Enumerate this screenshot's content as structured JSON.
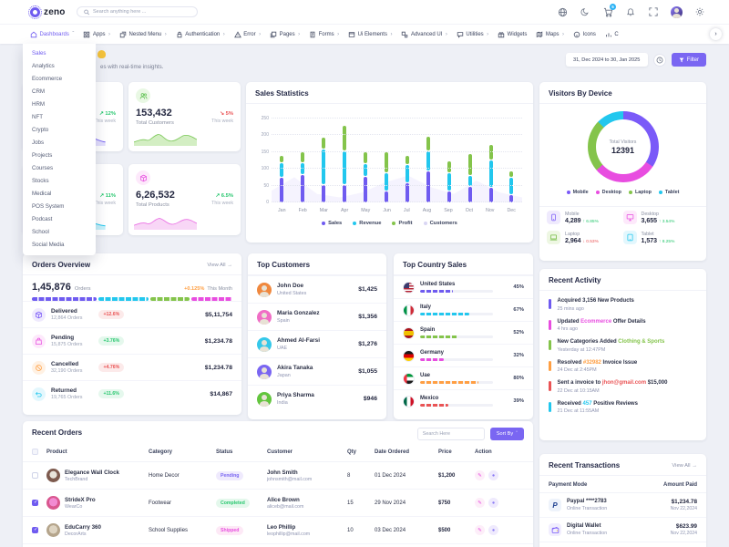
{
  "brand": {
    "name": "zeno"
  },
  "topbar": {
    "search_placeholder": "Search anything here ...",
    "cart_badge": "5"
  },
  "nav": {
    "items": [
      {
        "label": "Dashboards"
      },
      {
        "label": "Apps"
      },
      {
        "label": "Nested Menu"
      },
      {
        "label": "Authentication"
      },
      {
        "label": "Error"
      },
      {
        "label": "Pages"
      },
      {
        "label": "Forms"
      },
      {
        "label": "Ui Elements"
      },
      {
        "label": "Advanced UI"
      },
      {
        "label": "Utilities"
      },
      {
        "label": "Widgets"
      },
      {
        "label": "Maps"
      },
      {
        "label": "Icons"
      },
      {
        "label": "C"
      }
    ]
  },
  "dropdown": {
    "items": [
      "Sales",
      "Analytics",
      "Ecommerce",
      "CRM",
      "HRM",
      "NFT",
      "Crypto",
      "Jobs",
      "Projects",
      "Courses",
      "Stocks",
      "Medical",
      "POS System",
      "Podcast",
      "School",
      "Social Media"
    ]
  },
  "page_header": {
    "subtitle_fragment": "es with real-time insights.",
    "date_range": "31, Dec 2024 to 30, Jan 2025",
    "filter_label": "Filter"
  },
  "stat_cards": {
    "card1": {
      "trend": "↗ 12%",
      "period": "This week"
    },
    "customers": {
      "value": "153,432",
      "label": "Total Customers",
      "trend": "↘ 5%",
      "period": "This week"
    },
    "card3": {
      "trend": "↗ 11%",
      "period": "This week"
    },
    "products": {
      "value": "6,26,532",
      "label": "Total Products",
      "trend": "↗ 6.5%",
      "period": "This week"
    }
  },
  "chart_data": [
    {
      "type": "bar",
      "title": "Sales Statistics",
      "stacked": true,
      "categories": [
        "Jan",
        "Feb",
        "Mar",
        "Apr",
        "May",
        "Jun",
        "Jul",
        "Aug",
        "Sep",
        "Oct",
        "Nov",
        "Dec"
      ],
      "series": [
        {
          "name": "Sales",
          "color": "#6f5bf0",
          "values": [
            75,
            85,
            55,
            55,
            78,
            35,
            60,
            95,
            35,
            48,
            46,
            25
          ]
        },
        {
          "name": "Revenue",
          "color": "#22c7ee",
          "values": [
            45,
            35,
            105,
            100,
            40,
            55,
            55,
            60,
            55,
            34,
            82,
            50
          ]
        },
        {
          "name": "Profit",
          "color": "#84c44b",
          "values": [
            22,
            33,
            37,
            75,
            33,
            62,
            26,
            43,
            36,
            64,
            46,
            20
          ]
        }
      ],
      "area_series": {
        "name": "Customers",
        "color": "#6f5bf0",
        "values": [
          35,
          75,
          25,
          15,
          30,
          60,
          80,
          45,
          25,
          65,
          30,
          15
        ]
      },
      "ylim": [
        0,
        250
      ],
      "yticks": [
        0,
        50,
        100,
        150,
        200,
        250
      ],
      "legend": [
        "Sales",
        "Revenue",
        "Profit",
        "Customers"
      ],
      "legend_colors": [
        "#6f5bf0",
        "#22c7ee",
        "#84c44b",
        "#d9d6f3"
      ]
    },
    {
      "type": "pie",
      "title": "Visitors By Device",
      "labels": [
        "Mobile",
        "Desktop",
        "Laptop",
        "Tablet"
      ],
      "values": [
        4289,
        3655,
        2964,
        1573
      ],
      "colors": [
        "#7a5af8",
        "#e84de0",
        "#84c44b",
        "#22c7ee"
      ],
      "center_label": "Total Visitors",
      "center_value": "12391"
    }
  ],
  "visitors": {
    "title": "Visitors By Device",
    "stats": [
      {
        "label": "Mobile",
        "value": "4,289",
        "trend": "↑ 6.85%"
      },
      {
        "label": "Desktop",
        "value": "3,655",
        "trend": "↑ 3.54%"
      },
      {
        "label": "Laptop",
        "value": "2,964",
        "trend": "↓ 0.53%"
      },
      {
        "label": "Tablet",
        "value": "1,573",
        "trend": "↑ 8.25%"
      }
    ]
  },
  "orders_overview": {
    "title": "Orders Overview",
    "view_all": "View All →",
    "total": "1,45,876",
    "total_label": "Orders",
    "trend": "+0.125%",
    "period": "This Month",
    "segments": [
      {
        "percent": 33,
        "color": "#6f5bf0"
      },
      {
        "percent": 26,
        "color": "#22c7ee"
      },
      {
        "percent": 20,
        "color": "#84c44b"
      },
      {
        "percent": 21,
        "color": "#e84de0"
      }
    ],
    "rows": [
      {
        "name": "Delivered",
        "orders": "12,864 Orders",
        "change": "+12.6%",
        "amount": "$5,11,754"
      },
      {
        "name": "Pending",
        "orders": "15,875 Orders",
        "change": "+3.76%",
        "amount": "$1,234.78"
      },
      {
        "name": "Cancelled",
        "orders": "32,190 Orders",
        "change": "+4.76%",
        "amount": "$1,234.78"
      },
      {
        "name": "Returned",
        "orders": "19,765 Orders",
        "change": "+11.6%",
        "amount": "$14,867"
      }
    ]
  },
  "top_customers": {
    "title": "Top Customers",
    "rows": [
      {
        "name": "John Doe",
        "country": "United States",
        "amount": "$1,425"
      },
      {
        "name": "Maria Gonzalez",
        "country": "Spain",
        "amount": "$1,356"
      },
      {
        "name": "Ahmed Al-Farsi",
        "country": "UAE",
        "amount": "$1,276"
      },
      {
        "name": "Akira Tanaka",
        "country": "Japan",
        "amount": "$1,055"
      },
      {
        "name": "Priya Sharma",
        "country": "India",
        "amount": "$946"
      }
    ]
  },
  "top_countries": {
    "title": "Top Country Sales",
    "rows": [
      {
        "name": "United States",
        "percent": "45%",
        "percent_num": 45,
        "color": "#6f5bf0"
      },
      {
        "name": "Italy",
        "percent": "67%",
        "percent_num": 67,
        "color": "#22c7ee"
      },
      {
        "name": "Spain",
        "percent": "52%",
        "percent_num": 52,
        "color": "#84c44b"
      },
      {
        "name": "Germany",
        "percent": "32%",
        "percent_num": 32,
        "color": "#e84de0"
      },
      {
        "name": "Uae",
        "percent": "80%",
        "percent_num": 80,
        "color": "#ff9f43"
      },
      {
        "name": "Mexico",
        "percent": "39%",
        "percent_num": 39,
        "color": "#ea5455"
      }
    ]
  },
  "recent_activity": {
    "title": "Recent Activity",
    "items": [
      {
        "pre": "Acquired 3,156 New Products",
        "hl": "",
        "post": "",
        "time": "25 mins ago",
        "color": "#6f5bf0"
      },
      {
        "pre": "Updated ",
        "hl": "Ecommerce",
        "post": " Offer Details",
        "time": "4 hrs ago",
        "color": "#e84de0"
      },
      {
        "pre": "New Categories Added ",
        "hl": "Clothing & Sports",
        "post": "",
        "time": "Yesterday at 12:47PM",
        "color": "#84c44b"
      },
      {
        "pre": "Resolved ",
        "hl": "#32982",
        "post": " Invoice Issue",
        "time": "24 Dec at 2:45PM",
        "color": "#ff9f43"
      },
      {
        "pre": "Sent a invoice to ",
        "hl": "jhon@gmail.com",
        "post": " $15,000",
        "time": "22 Dec at 10:15AM",
        "color": "#ea5455"
      },
      {
        "pre": "Received ",
        "hl": "457",
        "post": " Positive Reviews",
        "time": "21 Dec at 11:55AM",
        "color": "#22c7ee"
      }
    ]
  },
  "recent_orders": {
    "title": "Recent Orders",
    "search_placeholder": "Search Here",
    "sort_label": "Sort By",
    "headers": [
      "Product",
      "Category",
      "Status",
      "Customer",
      "Qty",
      "Date Ordered",
      "Price",
      "Action"
    ],
    "rows": [
      {
        "product": "Elegance Wall Clock",
        "brand": "TechBrand",
        "category": "Home Decor",
        "status": "Pending",
        "customer": "John Smith",
        "email": "johnsmith@mail.com",
        "qty": "8",
        "date": "01 Dec 2024",
        "price": "$1,200",
        "checked": false
      },
      {
        "product": "StrideX Pro",
        "brand": "WearCo",
        "category": "Footwear",
        "status": "Completed",
        "customer": "Alice Brown",
        "email": "aliceb@mail.com",
        "qty": "15",
        "date": "29 Nov 2024",
        "price": "$750",
        "checked": true
      },
      {
        "product": "EduCarry 360",
        "brand": "DecorArts",
        "category": "School Supplies",
        "status": "Shipped",
        "customer": "Leo Phillip",
        "email": "leophillip@mail.com",
        "qty": "10",
        "date": "03 Dec 2024",
        "price": "$500",
        "checked": true
      }
    ]
  },
  "recent_transactions": {
    "title": "Recent Transactions",
    "view_all": "View All →",
    "headers": [
      "Payment Mode",
      "Amount Paid"
    ],
    "rows": [
      {
        "mode": "Paypal ****2783",
        "sub": "Online Transaction",
        "amount": "$1,234.78",
        "date": "Nov 22,2024"
      },
      {
        "mode": "Digital Wallet",
        "sub": "Online Transaction",
        "amount": "$623.99",
        "date": "Nov 22,2024"
      }
    ]
  }
}
